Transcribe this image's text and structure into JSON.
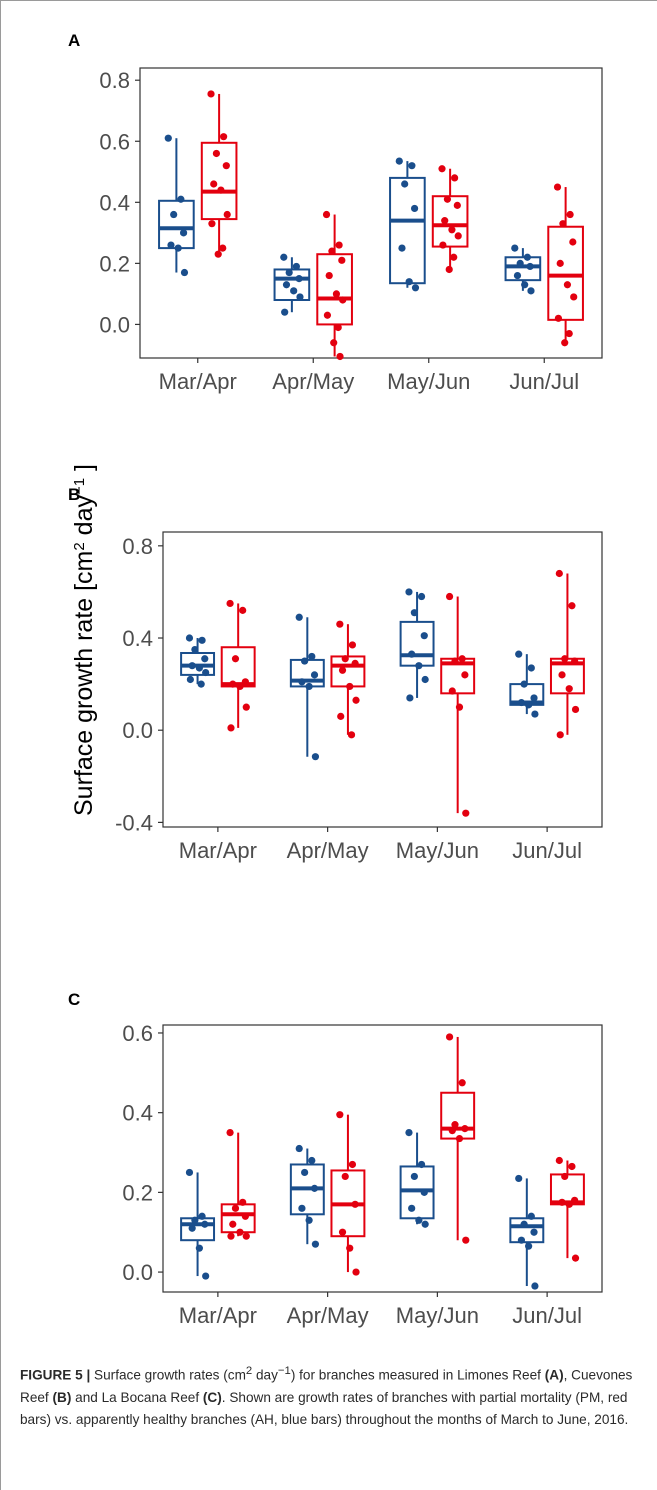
{
  "figure": {
    "ylabel": "Surface growth rate [cm",
    "ylabel_sup1": "2",
    "ylabel_mid": " day",
    "ylabel_sup2": "−1",
    "ylabel_end": " ]"
  },
  "colors": {
    "ah": "#1a4e8c",
    "pm": "#e3000f",
    "axis": "#4d4d4d"
  },
  "chart_data": [
    {
      "type": "box",
      "panel_label": "A",
      "categories": [
        "Mar/Apr",
        "Apr/May",
        "May/Jun",
        "Jun/Jul"
      ],
      "yticks": [
        "0.0",
        "0.2",
        "0.4",
        "0.6",
        "0.8"
      ],
      "ylim": [
        -0.11,
        0.84
      ],
      "series": [
        {
          "group": "AH",
          "color": "#1a4e8c",
          "boxes": [
            {
              "min": 0.17,
              "q1": 0.25,
              "median": 0.315,
              "q3": 0.405,
              "max": 0.61,
              "points": [
                0.61,
                0.41,
                0.36,
                0.3,
                0.26,
                0.25,
                0.17
              ]
            },
            {
              "min": 0.04,
              "q1": 0.08,
              "median": 0.15,
              "q3": 0.18,
              "max": 0.22,
              "points": [
                0.22,
                0.19,
                0.17,
                0.15,
                0.13,
                0.11,
                0.09,
                0.04
              ]
            },
            {
              "min": 0.12,
              "q1": 0.135,
              "median": 0.34,
              "q3": 0.48,
              "max": 0.535,
              "points": [
                0.535,
                0.52,
                0.46,
                0.38,
                0.25,
                0.14,
                0.12
              ]
            },
            {
              "min": 0.11,
              "q1": 0.145,
              "median": 0.19,
              "q3": 0.22,
              "max": 0.25,
              "points": [
                0.25,
                0.22,
                0.2,
                0.19,
                0.16,
                0.13,
                0.11
              ]
            }
          ]
        },
        {
          "group": "PM",
          "color": "#e3000f",
          "boxes": [
            {
              "min": 0.23,
              "q1": 0.345,
              "median": 0.435,
              "q3": 0.595,
              "max": 0.755,
              "points": [
                0.755,
                0.615,
                0.56,
                0.52,
                0.46,
                0.44,
                0.36,
                0.33,
                0.25,
                0.23
              ]
            },
            {
              "min": -0.105,
              "q1": 0.0,
              "median": 0.085,
              "q3": 0.23,
              "max": 0.36,
              "points": [
                0.36,
                0.26,
                0.24,
                0.21,
                0.16,
                0.1,
                0.08,
                0.03,
                -0.01,
                -0.06,
                -0.105
              ]
            },
            {
              "min": 0.175,
              "q1": 0.255,
              "median": 0.325,
              "q3": 0.42,
              "max": 0.51,
              "points": [
                0.51,
                0.48,
                0.41,
                0.39,
                0.34,
                0.31,
                0.29,
                0.26,
                0.22,
                0.18
              ]
            },
            {
              "min": -0.06,
              "q1": 0.015,
              "median": 0.16,
              "q3": 0.32,
              "max": 0.45,
              "points": [
                0.45,
                0.36,
                0.33,
                0.27,
                0.2,
                0.13,
                0.09,
                0.02,
                -0.03,
                -0.06
              ]
            }
          ]
        }
      ]
    },
    {
      "type": "box",
      "panel_label": "B",
      "categories": [
        "Mar/Apr",
        "Apr/May",
        "May/Jun",
        "Jun/Jul"
      ],
      "yticks": [
        "-0.4",
        "0.0",
        "0.4",
        "0.8"
      ],
      "ylim": [
        -0.42,
        0.86
      ],
      "series": [
        {
          "group": "AH",
          "color": "#1a4e8c",
          "boxes": [
            {
              "min": 0.2,
              "q1": 0.24,
              "median": 0.28,
              "q3": 0.335,
              "max": 0.4,
              "points": [
                0.4,
                0.39,
                0.35,
                0.31,
                0.28,
                0.27,
                0.25,
                0.22,
                0.2
              ]
            },
            {
              "min": -0.115,
              "q1": 0.19,
              "median": 0.215,
              "q3": 0.305,
              "max": 0.49,
              "points": [
                0.49,
                0.32,
                0.3,
                0.24,
                0.21,
                0.19,
                -0.115
              ]
            },
            {
              "min": 0.14,
              "q1": 0.28,
              "median": 0.325,
              "q3": 0.47,
              "max": 0.6,
              "points": [
                0.6,
                0.58,
                0.51,
                0.41,
                0.33,
                0.28,
                0.22,
                0.14
              ]
            },
            {
              "min": 0.07,
              "q1": 0.11,
              "median": 0.12,
              "q3": 0.2,
              "max": 0.33,
              "points": [
                0.33,
                0.27,
                0.2,
                0.14,
                0.12,
                0.11,
                0.07
              ]
            }
          ]
        },
        {
          "group": "PM",
          "color": "#e3000f",
          "boxes": [
            {
              "min": 0.01,
              "q1": 0.19,
              "median": 0.2,
              "q3": 0.36,
              "max": 0.55,
              "points": [
                0.55,
                0.52,
                0.31,
                0.21,
                0.2,
                0.19,
                0.1,
                0.01
              ]
            },
            {
              "min": -0.02,
              "q1": 0.19,
              "median": 0.28,
              "q3": 0.32,
              "max": 0.46,
              "points": [
                0.46,
                0.37,
                0.31,
                0.29,
                0.26,
                0.19,
                0.13,
                0.06,
                -0.02
              ]
            },
            {
              "min": -0.36,
              "q1": 0.16,
              "median": 0.29,
              "q3": 0.31,
              "max": 0.58,
              "points": [
                0.58,
                0.31,
                0.3,
                0.24,
                0.17,
                0.1,
                -0.36
              ]
            },
            {
              "min": -0.02,
              "q1": 0.16,
              "median": 0.29,
              "q3": 0.31,
              "max": 0.68,
              "points": [
                0.68,
                0.54,
                0.31,
                0.3,
                0.24,
                0.18,
                0.09,
                -0.02
              ]
            }
          ]
        }
      ]
    },
    {
      "type": "box",
      "panel_label": "C",
      "categories": [
        "Mar/Apr",
        "Apr/May",
        "May/Jun",
        "Jun/Jul"
      ],
      "yticks": [
        "0.0",
        "0.2",
        "0.4",
        "0.6"
      ],
      "ylim": [
        -0.05,
        0.62
      ],
      "series": [
        {
          "group": "AH",
          "color": "#1a4e8c",
          "boxes": [
            {
              "min": -0.01,
              "q1": 0.08,
              "median": 0.12,
              "q3": 0.135,
              "max": 0.25,
              "points": [
                0.25,
                0.14,
                0.13,
                0.12,
                0.11,
                0.06,
                -0.01
              ]
            },
            {
              "min": 0.07,
              "q1": 0.145,
              "median": 0.21,
              "q3": 0.27,
              "max": 0.31,
              "points": [
                0.31,
                0.28,
                0.25,
                0.21,
                0.16,
                0.13,
                0.07
              ]
            },
            {
              "min": 0.12,
              "q1": 0.135,
              "median": 0.205,
              "q3": 0.265,
              "max": 0.35,
              "points": [
                0.35,
                0.27,
                0.24,
                0.2,
                0.16,
                0.13,
                0.12
              ]
            },
            {
              "min": -0.035,
              "q1": 0.075,
              "median": 0.115,
              "q3": 0.135,
              "max": 0.235,
              "points": [
                0.235,
                0.14,
                0.12,
                0.1,
                0.08,
                0.065,
                -0.035
              ]
            }
          ]
        },
        {
          "group": "PM",
          "color": "#e3000f",
          "boxes": [
            {
              "min": 0.09,
              "q1": 0.1,
              "median": 0.145,
              "q3": 0.17,
              "max": 0.35,
              "points": [
                0.35,
                0.175,
                0.16,
                0.14,
                0.12,
                0.1,
                0.09,
                0.09
              ]
            },
            {
              "min": 0.0,
              "q1": 0.09,
              "median": 0.17,
              "q3": 0.255,
              "max": 0.395,
              "points": [
                0.395,
                0.27,
                0.24,
                0.17,
                0.1,
                0.06,
                0.0
              ]
            },
            {
              "min": 0.08,
              "q1": 0.335,
              "median": 0.36,
              "q3": 0.45,
              "max": 0.59,
              "points": [
                0.59,
                0.475,
                0.37,
                0.36,
                0.355,
                0.335,
                0.08
              ]
            },
            {
              "min": 0.035,
              "q1": 0.17,
              "median": 0.175,
              "q3": 0.245,
              "max": 0.28,
              "points": [
                0.28,
                0.265,
                0.24,
                0.18,
                0.175,
                0.17,
                0.035
              ]
            }
          ]
        }
      ]
    }
  ],
  "caption": {
    "label": "FIGURE 5 |",
    "text_1": " Surface growth rates (cm",
    "sup_1": "2",
    "text_2": " day",
    "sup_2": "−1",
    "text_3": ") for branches measured in Limones Reef ",
    "ref_a": "(A)",
    "text_4": ", Cuevones Reef ",
    "ref_b": "(B)",
    "text_5": " and La Bocana Reef ",
    "ref_c": "(C)",
    "text_6": ". Shown are growth rates of branches with partial mortality (PM, red bars) vs. apparently healthy branches (AH, blue bars) throughout the months of March to June, 2016."
  }
}
